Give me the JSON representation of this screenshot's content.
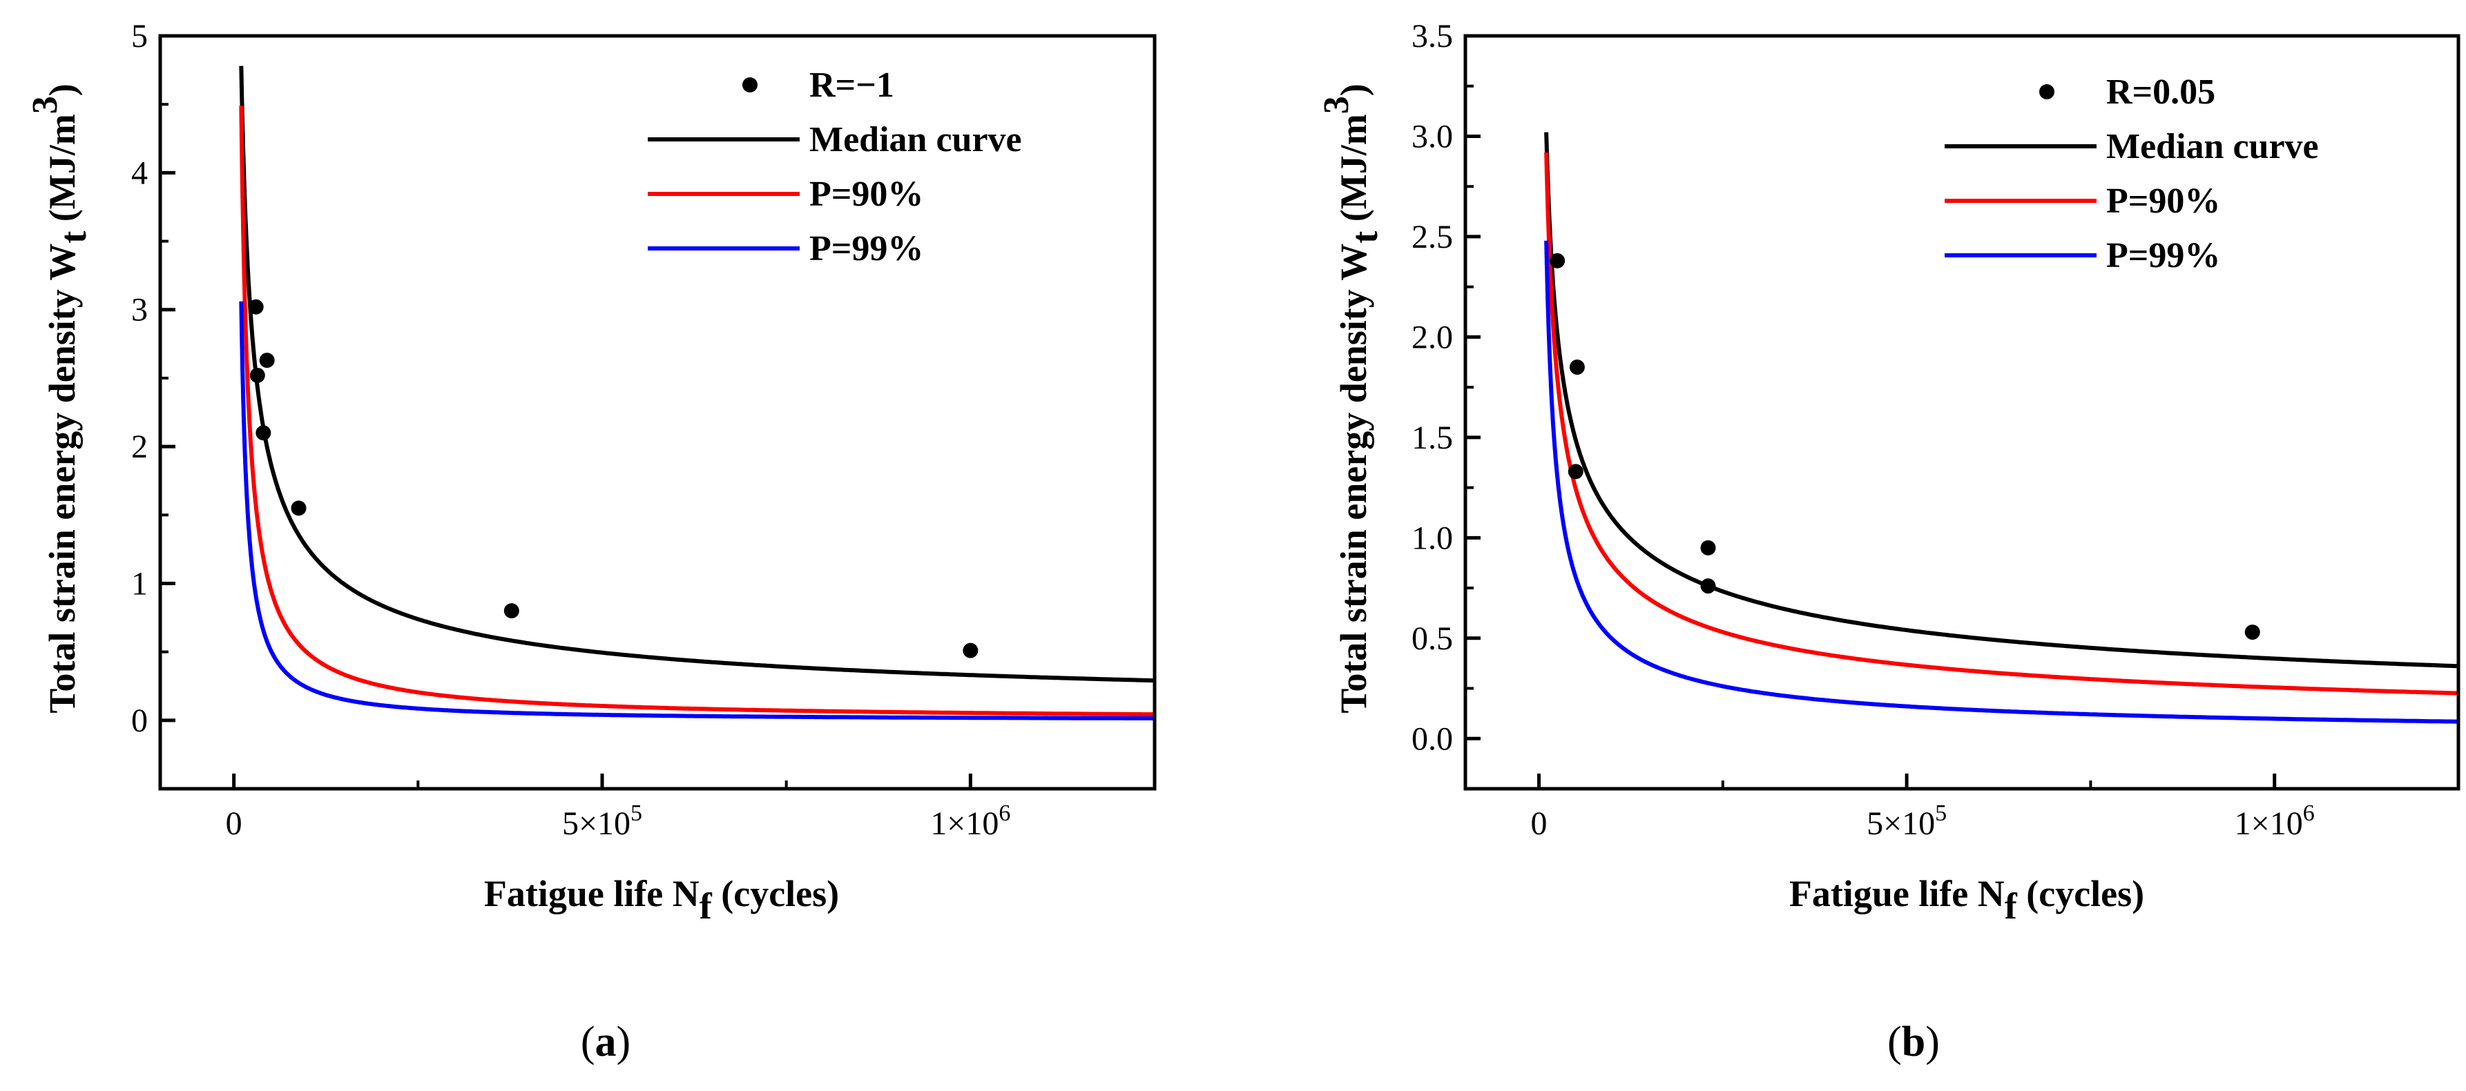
{
  "chart_data": [
    {
      "type": "scatter",
      "panel_label": "(a)",
      "caption_prefix": "(",
      "caption_letter": "a",
      "caption_suffix": ")",
      "xlabel_main": "Fatigue life N",
      "xlabel_sub": "f",
      "xlabel_tail": " (cycles)",
      "ylabel_main": "Total strain energy density  W",
      "ylabel_sub": "t",
      "ylabel_unit": " (MJ/m",
      "ylabel_sup": "3",
      "ylabel_close": ")",
      "xlim": [
        -100000,
        1250000
      ],
      "ylim": [
        -0.5,
        5
      ],
      "xticks": [
        {
          "value": 0,
          "label": "0",
          "sup": ""
        },
        {
          "value": 500000,
          "label": "5×10",
          "sup": "5"
        },
        {
          "value": 1000000,
          "label": "1×10",
          "sup": "6"
        }
      ],
      "yticks": [
        {
          "value": 0,
          "label": "0"
        },
        {
          "value": 1,
          "label": "1"
        },
        {
          "value": 2,
          "label": "2"
        },
        {
          "value": 3,
          "label": "3"
        },
        {
          "value": 4,
          "label": "4"
        },
        {
          "value": 5,
          "label": "5"
        }
      ],
      "points_name": "R=−1",
      "points": [
        {
          "x": 30000,
          "y": 3.02
        },
        {
          "x": 32000,
          "y": 2.52
        },
        {
          "x": 45000,
          "y": 2.63
        },
        {
          "x": 40000,
          "y": 2.1
        },
        {
          "x": 88000,
          "y": 1.55
        },
        {
          "x": 377000,
          "y": 0.8
        },
        {
          "x": 1000000,
          "y": 0.51
        }
      ],
      "series": [
        {
          "name": "Median curve",
          "color": "#000000",
          "A": 4.78,
          "b": 0.0,
          "x0": 10000,
          "p": 0.58,
          "start_x": 10000
        },
        {
          "name": "P=90%",
          "color": "#ff0000",
          "A": 4.49,
          "b": 0.0,
          "x0": 10000,
          "p": 0.96,
          "start_x": 10000
        },
        {
          "name": "P=99%",
          "color": "#0000ff",
          "A": 3.06,
          "b": 0.0,
          "x0": 10000,
          "p": 1.11,
          "start_x": 10000
        }
      ]
    },
    {
      "type": "scatter",
      "panel_label": "(b)",
      "caption_prefix": "(",
      "caption_letter": "b",
      "caption_suffix": ")",
      "xlabel_main": "Fatigue life N",
      "xlabel_sub": "f",
      "xlabel_tail": " (cycles)",
      "ylabel_main": "Total strain energy density  W",
      "ylabel_sub": "t",
      "ylabel_unit": " (MJ/m",
      "ylabel_sup": "3",
      "ylabel_close": ")",
      "xlim": [
        -100000,
        1250000
      ],
      "ylim": [
        -0.25,
        3.5
      ],
      "xticks": [
        {
          "value": 0,
          "label": "0",
          "sup": ""
        },
        {
          "value": 500000,
          "label": "5×10",
          "sup": "5"
        },
        {
          "value": 1000000,
          "label": "1×10",
          "sup": "6"
        }
      ],
      "yticks": [
        {
          "value": 0,
          "label": "0.0"
        },
        {
          "value": 0.5,
          "label": "0.5"
        },
        {
          "value": 1,
          "label": "1.0"
        },
        {
          "value": 1.5,
          "label": "1.5"
        },
        {
          "value": 2,
          "label": "2.0"
        },
        {
          "value": 2.5,
          "label": "2.5"
        },
        {
          "value": 3,
          "label": "3.0"
        },
        {
          "value": 3.5,
          "label": "3.5"
        }
      ],
      "points_name": "R=0.05",
      "points": [
        {
          "x": 25000,
          "y": 2.38
        },
        {
          "x": 52000,
          "y": 1.85
        },
        {
          "x": 50000,
          "y": 1.33
        },
        {
          "x": 230000,
          "y": 0.95
        },
        {
          "x": 230000,
          "y": 0.76
        },
        {
          "x": 970000,
          "y": 0.53
        }
      ],
      "series": [
        {
          "name": "Median curve",
          "color": "#000000",
          "A": 3.02,
          "b": 0.0,
          "x0": 10000,
          "p": 0.44,
          "start_x": 10000
        },
        {
          "name": "P=90%",
          "color": "#ff0000",
          "A": 2.92,
          "b": 0.0,
          "x0": 10000,
          "p": 0.53,
          "start_x": 10000
        },
        {
          "name": "P=99%",
          "color": "#0000ff",
          "A": 2.48,
          "b": 0.0,
          "x0": 10000,
          "p": 0.7,
          "start_x": 10000
        }
      ]
    }
  ]
}
